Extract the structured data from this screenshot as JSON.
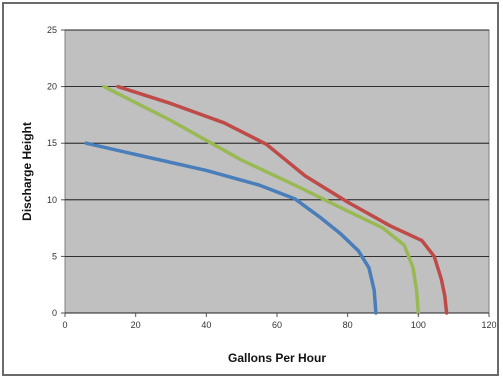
{
  "chart_data": {
    "type": "line",
    "title": "",
    "xlabel": "Gallons Per Hour",
    "ylabel": "Discharge Height",
    "xlim": [
      0,
      120
    ],
    "ylim": [
      0,
      25
    ],
    "xticks": [
      0,
      20,
      40,
      60,
      80,
      100,
      120
    ],
    "yticks": [
      0,
      5,
      10,
      15,
      20,
      25
    ],
    "grid": "horizontal",
    "legend": "none",
    "plot_background": "#c0c0c0",
    "series": [
      {
        "color": "#4a7ebb",
        "points": [
          [
            6,
            15
          ],
          [
            20,
            14
          ],
          [
            40,
            12.6
          ],
          [
            55,
            11.3
          ],
          [
            65,
            10.1
          ],
          [
            72,
            8.5
          ],
          [
            78,
            7
          ],
          [
            83,
            5.5
          ],
          [
            86,
            4
          ],
          [
            87.5,
            2
          ],
          [
            88,
            0
          ]
        ]
      },
      {
        "color": "#98b954",
        "points": [
          [
            11,
            20
          ],
          [
            30,
            17
          ],
          [
            50,
            13.5
          ],
          [
            65,
            11.3
          ],
          [
            80,
            9
          ],
          [
            90,
            7.5
          ],
          [
            96,
            6
          ],
          [
            98.5,
            4
          ],
          [
            99.5,
            2
          ],
          [
            100,
            0
          ]
        ]
      },
      {
        "color": "#be4b48",
        "points": [
          [
            15,
            20
          ],
          [
            30,
            18.5
          ],
          [
            45,
            16.8
          ],
          [
            57,
            14.9
          ],
          [
            68,
            12.1
          ],
          [
            80,
            9.8
          ],
          [
            92,
            7.7
          ],
          [
            101,
            6.4
          ],
          [
            104.5,
            5
          ],
          [
            106.5,
            3
          ],
          [
            107.5,
            1.5
          ],
          [
            108,
            0
          ]
        ]
      }
    ]
  }
}
